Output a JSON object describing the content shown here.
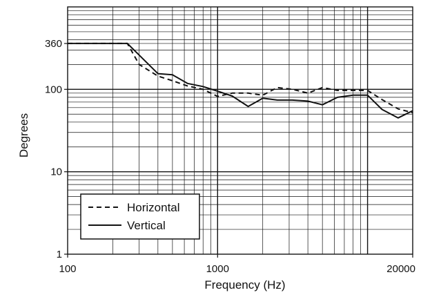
{
  "chart_data": {
    "type": "line",
    "xlabel": "Frequency (Hz)",
    "ylabel": "Degrees",
    "x_scale": "log",
    "y_scale": "log",
    "xlim": [
      100,
      20000
    ],
    "ylim": [
      1,
      1000
    ],
    "x_tick_labels": [
      "100",
      "1000",
      "20000"
    ],
    "x_tick_values": [
      100,
      1000,
      20000
    ],
    "y_tick_labels": [
      "1",
      "10",
      "100",
      "360"
    ],
    "y_tick_values": [
      1,
      10,
      100,
      360
    ],
    "grid": true,
    "legend_position": "bottom-left",
    "series": [
      {
        "name": "Horizontal",
        "line_style": "dashed",
        "color": "#111111",
        "x": [
          100,
          250,
          300,
          400,
          500,
          630,
          800,
          1000,
          1250,
          1600,
          2000,
          2500,
          3150,
          4000,
          5000,
          6300,
          8000,
          10000,
          12500,
          16000,
          20000
        ],
        "y": [
          360,
          360,
          200,
          145,
          127,
          110,
          100,
          82,
          90,
          90,
          85,
          105,
          100,
          90,
          105,
          97,
          97,
          97,
          75,
          58,
          52
        ]
      },
      {
        "name": "Vertical",
        "line_style": "solid",
        "color": "#111111",
        "x": [
          100,
          250,
          300,
          400,
          500,
          630,
          800,
          1000,
          1250,
          1600,
          2000,
          2500,
          3150,
          4000,
          5000,
          6300,
          8000,
          10000,
          12500,
          16000,
          20000
        ],
        "y": [
          360,
          360,
          260,
          155,
          150,
          118,
          108,
          95,
          83,
          62,
          78,
          74,
          74,
          72,
          65,
          80,
          85,
          85,
          57,
          45,
          55
        ]
      }
    ]
  }
}
